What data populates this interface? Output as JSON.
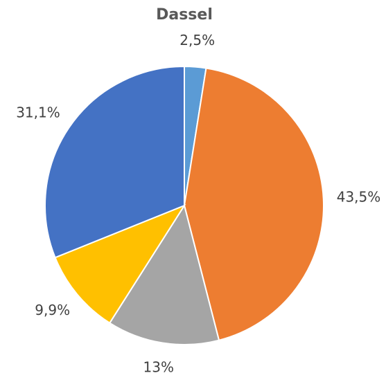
{
  "chart_data": {
    "type": "pie",
    "title": "Dassel",
    "values": [
      2.5,
      43.5,
      13,
      9.9,
      31.1
    ],
    "value_labels": [
      "2,5%",
      "43,5%",
      "13%",
      "9,9%",
      "31,1%"
    ],
    "colors": [
      "#5b9bd5",
      "#ed7d31",
      "#a5a5a5",
      "#ffc000",
      "#4472c4"
    ]
  }
}
